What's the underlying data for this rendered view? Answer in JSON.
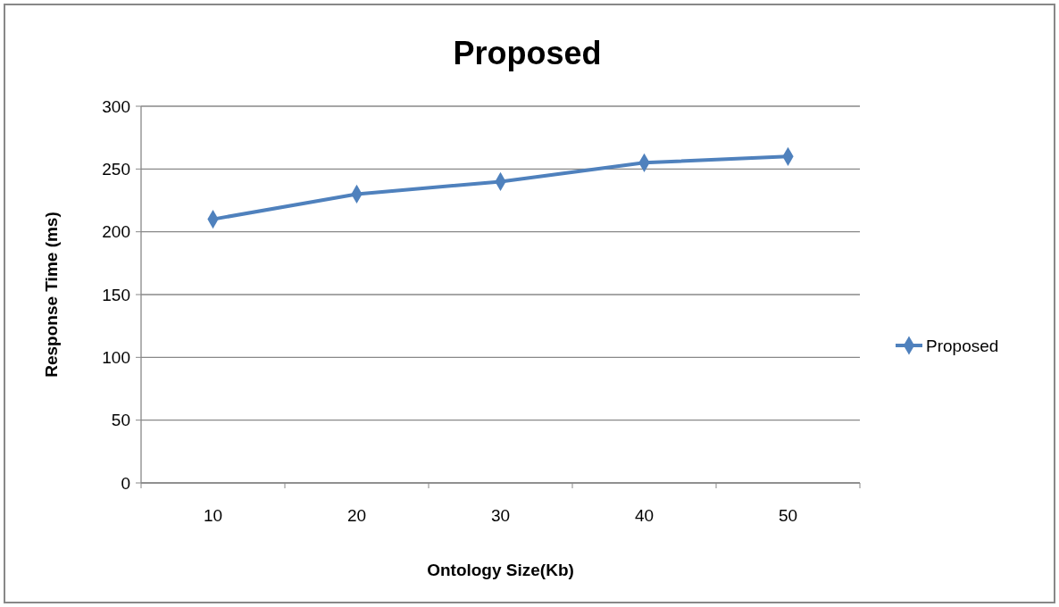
{
  "chart_data": {
    "type": "line",
    "title": "Proposed",
    "xlabel": "Ontology Size(Kb)",
    "ylabel": "Response Time (ms)",
    "categories": [
      "10",
      "20",
      "30",
      "40",
      "50"
    ],
    "series": [
      {
        "name": "Proposed",
        "color": "#4f81bd",
        "values": [
          210,
          230,
          240,
          255,
          260
        ]
      }
    ],
    "ylim": [
      0,
      300
    ],
    "yticks": [
      0,
      50,
      100,
      150,
      200,
      250,
      300
    ],
    "grid": "y",
    "legend": "right",
    "marker": "diamond"
  }
}
